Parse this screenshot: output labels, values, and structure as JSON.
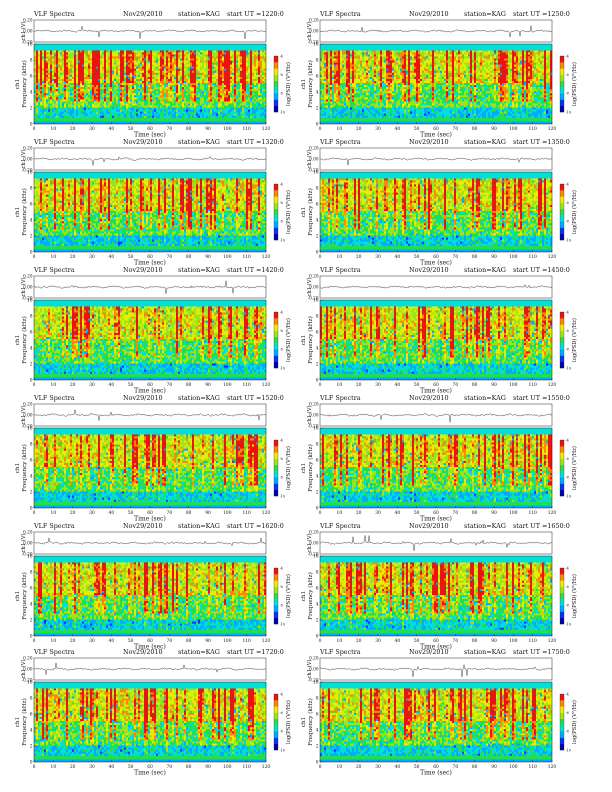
{
  "chart_data": {
    "type": "heatmap",
    "xlabel": "Time (sec)",
    "xlim": [
      0,
      120
    ],
    "x_ticks": [
      "0",
      "10",
      "20",
      "30",
      "40",
      "50",
      "60",
      "70",
      "80",
      "90",
      "100",
      "110",
      "120"
    ],
    "ylabel_spectrogram": "Frequency (kHz)",
    "ylabel_channel": "ch1",
    "ylim_spectrogram": [
      0,
      10
    ],
    "y_ticks_spectrogram": [
      "0",
      "2",
      "4",
      "6",
      "8",
      "10"
    ],
    "ylabel_waveform": "ch1 (V)",
    "ylim_waveform": [
      -0.2,
      0.2
    ],
    "y_ticks_waveform": [
      "0.20",
      "0.00",
      "-0.20"
    ],
    "colorbar_label": "log(PSD) (V²/Hz)",
    "colorbar_ticks": [
      "-4",
      "-6",
      "-8",
      "-10"
    ],
    "colormap": [
      "#0000aa",
      "#0033ff",
      "#00aaff",
      "#00e0d8",
      "#22dd55",
      "#99e61e",
      "#e8ee00",
      "#ff8800",
      "#ee1111"
    ],
    "common": {
      "title": "VLF Spectra",
      "date": "Nov29/2010",
      "station": "station=KAG"
    },
    "panels": [
      {
        "start": "start UT =1220:0",
        "seed": 11
      },
      {
        "start": "start UT =1250:0",
        "seed": 23
      },
      {
        "start": "start UT =1320:0",
        "seed": 37
      },
      {
        "start": "start UT =1350:0",
        "seed": 41
      },
      {
        "start": "start UT =1420:0",
        "seed": 53
      },
      {
        "start": "start UT =1450:0",
        "seed": 67
      },
      {
        "start": "start UT =1520:0",
        "seed": 71
      },
      {
        "start": "start UT =1550:0",
        "seed": 83
      },
      {
        "start": "start UT =1620:0",
        "seed": 97
      },
      {
        "start": "start UT =1650:0",
        "seed": 101
      },
      {
        "start": "start UT =1720:0",
        "seed": 113
      },
      {
        "start": "start UT =1750:0",
        "seed": 127
      }
    ]
  }
}
